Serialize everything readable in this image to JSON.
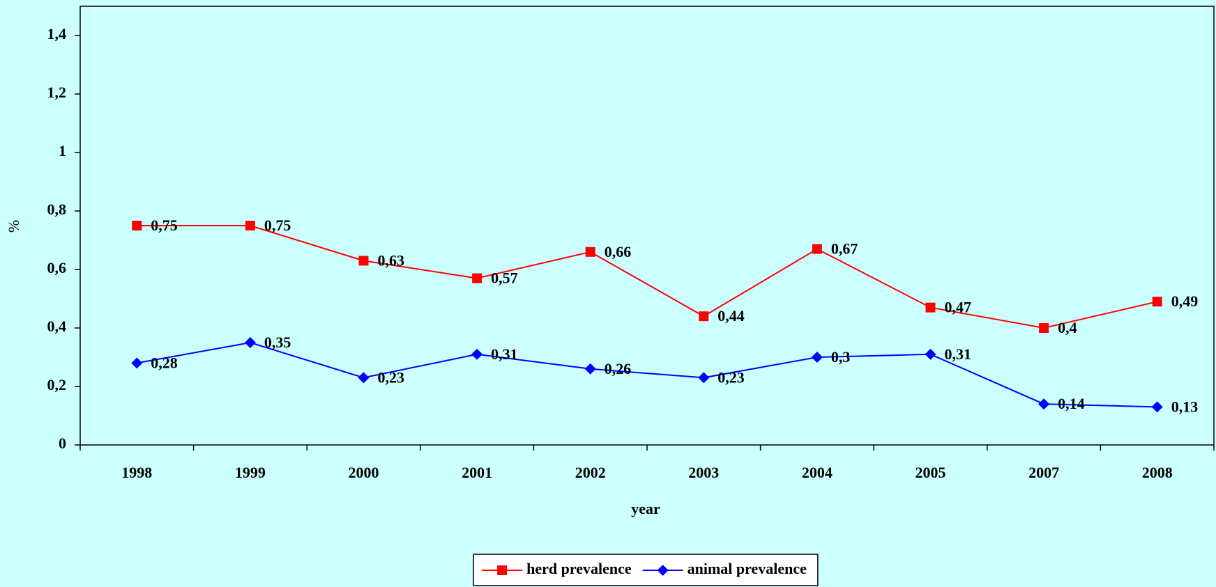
{
  "chart_data": {
    "type": "line",
    "x_label": "year",
    "y_label": "%",
    "categories": [
      "1998",
      "1999",
      "2000",
      "2001",
      "2002",
      "2003",
      "2004",
      "2005",
      "2007",
      "2008"
    ],
    "series": [
      {
        "name": "herd prevalence",
        "color": "#ff0000",
        "marker": "square",
        "values": [
          0.75,
          0.75,
          0.63,
          0.57,
          0.66,
          0.44,
          0.67,
          0.47,
          0.4,
          0.49
        ],
        "value_labels": [
          "0,75",
          "0,75",
          "0,63",
          "0,57",
          "0,66",
          "0,44",
          "0,67",
          "0,47",
          "0,4",
          "0,49"
        ]
      },
      {
        "name": "animal prevalence",
        "color": "#0000ff",
        "marker": "diamond",
        "values": [
          0.28,
          0.35,
          0.23,
          0.31,
          0.26,
          0.23,
          0.3,
          0.31,
          0.14,
          0.13
        ],
        "value_labels": [
          "0,28",
          "0,35",
          "0,23",
          "0,31",
          "0,26",
          "0,23",
          "0,3",
          "0,31",
          "0,14",
          "0,13"
        ]
      }
    ],
    "ylim": [
      0,
      1.5
    ],
    "yticks": [
      0,
      {
        "value": 0.2,
        "label": "0,2"
      },
      {
        "value": 0.4,
        "label": "0,4"
      },
      {
        "value": 0.6,
        "label": "0,6"
      },
      {
        "value": 0.8,
        "label": "0,8"
      },
      1,
      {
        "value": 1.2,
        "label": "1,2"
      },
      {
        "value": 1.4,
        "label": "1,4"
      }
    ],
    "legend": "bottom"
  }
}
